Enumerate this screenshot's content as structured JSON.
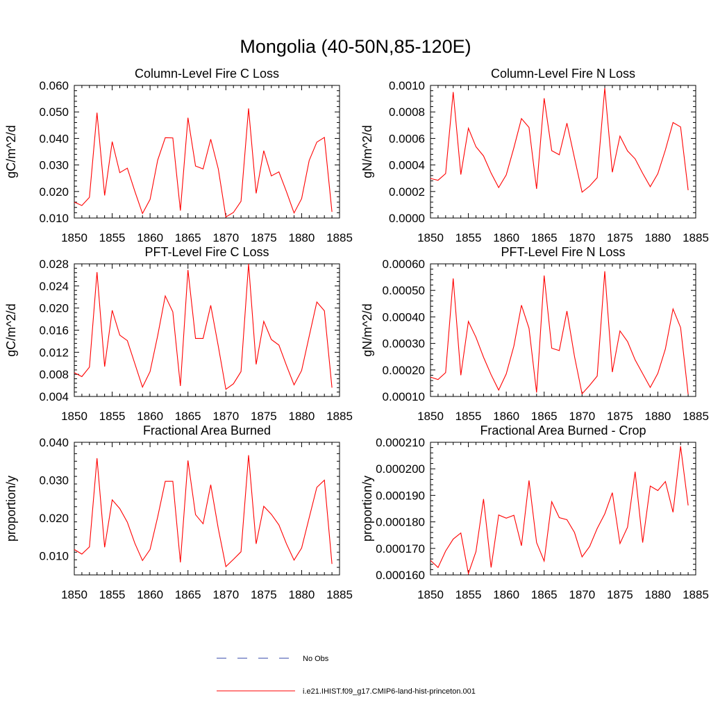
{
  "title": "Mongolia (40-50N,85-120E)",
  "legend": {
    "entries": [
      {
        "label": "No Obs",
        "style": "dashed",
        "color": "#3344aa"
      },
      {
        "label": "i.e21.IHIST.f09_g17.CMIP6-land-hist-princeton.001",
        "style": "solid",
        "color": "#ff0000"
      }
    ],
    "placement": "bottom-center"
  },
  "chart_data": [
    {
      "type": "line",
      "title": "Column-Level Fire C Loss",
      "ylabel": "gC/m^2/d",
      "xlim": [
        1850,
        1885
      ],
      "ylim": [
        0.01,
        0.06
      ],
      "xticks": [
        "1850",
        "1855",
        "1860",
        "1865",
        "1870",
        "1875",
        "1880",
        "1885"
      ],
      "yticks": [
        "0.010",
        "0.020",
        "0.030",
        "0.040",
        "0.050",
        "0.060"
      ],
      "x": [
        1850,
        1851,
        1852,
        1853,
        1854,
        1855,
        1856,
        1857,
        1858,
        1859,
        1860,
        1861,
        1862,
        1863,
        1864,
        1865,
        1866,
        1867,
        1868,
        1869,
        1870,
        1871,
        1872,
        1873,
        1874,
        1875,
        1876,
        1877,
        1878,
        1879,
        1880,
        1881,
        1882,
        1883,
        1884
      ],
      "series": [
        {
          "name": "i.e21.IHIST.f09_g17.CMIP6-land-hist-princeton.001",
          "color": "#ff0000",
          "values": [
            0.016,
            0.0147,
            0.0178,
            0.0497,
            0.0185,
            0.0388,
            0.0271,
            0.0288,
            0.02,
            0.0117,
            0.017,
            0.0318,
            0.0403,
            0.0402,
            0.0128,
            0.0478,
            0.0296,
            0.0285,
            0.0397,
            0.0285,
            0.0104,
            0.0121,
            0.0163,
            0.0513,
            0.0193,
            0.0354,
            0.0259,
            0.0274,
            0.0199,
            0.0119,
            0.0173,
            0.0317,
            0.0386,
            0.0404,
            0.0123
          ]
        }
      ]
    },
    {
      "type": "line",
      "title": "Column-Level Fire N Loss",
      "ylabel": "gN/m^2/d",
      "xlim": [
        1850,
        1885
      ],
      "ylim": [
        0.0,
        0.001
      ],
      "xticks": [
        "1850",
        "1855",
        "1860",
        "1865",
        "1870",
        "1875",
        "1880",
        "1885"
      ],
      "yticks": [
        "0.0000",
        "0.0002",
        "0.0004",
        "0.0006",
        "0.0008",
        "0.0010"
      ],
      "x": [
        1850,
        1851,
        1852,
        1853,
        1854,
        1855,
        1856,
        1857,
        1858,
        1859,
        1860,
        1861,
        1862,
        1863,
        1864,
        1865,
        1866,
        1867,
        1868,
        1869,
        1870,
        1871,
        1872,
        1873,
        1874,
        1875,
        1876,
        1877,
        1878,
        1879,
        1880,
        1881,
        1882,
        1883,
        1884
      ],
      "series": [
        {
          "name": "i.e21.IHIST.f09_g17.CMIP6-land-hist-princeton.001",
          "color": "#ff0000",
          "values": [
            0.000298,
            0.000285,
            0.000335,
            0.00095,
            0.000328,
            0.000677,
            0.000537,
            0.000468,
            0.000339,
            0.00023,
            0.000325,
            0.00053,
            0.00075,
            0.000683,
            0.00022,
            0.000903,
            0.000508,
            0.000477,
            0.000715,
            0.000453,
            0.000195,
            0.000241,
            0.000304,
            0.00098,
            0.000345,
            0.000618,
            0.000506,
            0.000446,
            0.000337,
            0.000236,
            0.000334,
            0.000513,
            0.00072,
            0.000687,
            0.00021
          ]
        }
      ]
    },
    {
      "type": "line",
      "title": "PFT-Level Fire C Loss",
      "ylabel": "gC/m^2/d",
      "xlim": [
        1850,
        1885
      ],
      "ylim": [
        0.004,
        0.028
      ],
      "xticks": [
        "1850",
        "1855",
        "1860",
        "1865",
        "1870",
        "1875",
        "1880",
        "1885"
      ],
      "yticks": [
        "0.004",
        "0.008",
        "0.012",
        "0.016",
        "0.020",
        "0.024",
        "0.028"
      ],
      "x": [
        1850,
        1851,
        1852,
        1853,
        1854,
        1855,
        1856,
        1857,
        1858,
        1859,
        1860,
        1861,
        1862,
        1863,
        1864,
        1865,
        1866,
        1867,
        1868,
        1869,
        1870,
        1871,
        1872,
        1873,
        1874,
        1875,
        1876,
        1877,
        1878,
        1879,
        1880,
        1881,
        1882,
        1883,
        1884
      ],
      "series": [
        {
          "name": "i.e21.IHIST.f09_g17.CMIP6-land-hist-princeton.001",
          "color": "#ff0000",
          "values": [
            0.0083,
            0.0076,
            0.0093,
            0.0265,
            0.0094,
            0.0196,
            0.0151,
            0.0141,
            0.0099,
            0.0057,
            0.0085,
            0.015,
            0.0222,
            0.0193,
            0.0059,
            0.0269,
            0.0145,
            0.0145,
            0.0205,
            0.0131,
            0.0053,
            0.0063,
            0.0085,
            0.028,
            0.0098,
            0.0176,
            0.0143,
            0.0133,
            0.0096,
            0.0061,
            0.0087,
            0.0149,
            0.0211,
            0.0195,
            0.0056
          ]
        }
      ]
    },
    {
      "type": "line",
      "title": "PFT-Level Fire N Loss",
      "ylabel": "gN/m^2/d",
      "xlim": [
        1850,
        1885
      ],
      "ylim": [
        0.0001,
        0.0006
      ],
      "xticks": [
        "1850",
        "1855",
        "1860",
        "1865",
        "1870",
        "1875",
        "1880",
        "1885"
      ],
      "yticks": [
        "0.00010",
        "0.00020",
        "0.00030",
        "0.00040",
        "0.00050",
        "0.00060"
      ],
      "x": [
        1850,
        1851,
        1852,
        1853,
        1854,
        1855,
        1856,
        1857,
        1858,
        1859,
        1860,
        1861,
        1862,
        1863,
        1864,
        1865,
        1866,
        1867,
        1868,
        1869,
        1870,
        1871,
        1872,
        1873,
        1874,
        1875,
        1876,
        1877,
        1878,
        1879,
        1880,
        1881,
        1882,
        1883,
        1884
      ],
      "series": [
        {
          "name": "i.e21.IHIST.f09_g17.CMIP6-land-hist-princeton.001",
          "color": "#ff0000",
          "values": [
            0.000173,
            0.000164,
            0.00019,
            0.000545,
            0.00018,
            0.000383,
            0.000323,
            0.000248,
            0.000182,
            0.000124,
            0.000185,
            0.00029,
            0.000444,
            0.000357,
            0.000115,
            0.000556,
            0.000282,
            0.000273,
            0.000422,
            0.000251,
            0.00011,
            0.000142,
            0.000177,
            0.000572,
            0.000192,
            0.000347,
            0.000307,
            0.000238,
            0.000186,
            0.000134,
            0.000187,
            0.000279,
            0.00043,
            0.00036,
            0.000108
          ]
        }
      ]
    },
    {
      "type": "line",
      "title": "Fractional Area Burned",
      "ylabel": "proportion/y",
      "xlim": [
        1850,
        1885
      ],
      "ylim": [
        0.005,
        0.04
      ],
      "xticks": [
        "1850",
        "1855",
        "1860",
        "1865",
        "1870",
        "1875",
        "1880",
        "1885"
      ],
      "yticks": [
        "0.010",
        "0.020",
        "0.030",
        "0.040"
      ],
      "ytick_values": [
        0.01,
        0.02,
        0.03,
        0.04
      ],
      "x": [
        1850,
        1851,
        1852,
        1853,
        1854,
        1855,
        1856,
        1857,
        1858,
        1859,
        1860,
        1861,
        1862,
        1863,
        1864,
        1865,
        1866,
        1867,
        1868,
        1869,
        1870,
        1871,
        1872,
        1873,
        1874,
        1875,
        1876,
        1877,
        1878,
        1879,
        1880,
        1881,
        1882,
        1883,
        1884
      ],
      "series": [
        {
          "name": "i.e21.IHIST.f09_g17.CMIP6-land-hist-princeton.001",
          "color": "#ff0000",
          "values": [
            0.0117,
            0.0105,
            0.0124,
            0.0358,
            0.0123,
            0.0248,
            0.0225,
            0.0189,
            0.0133,
            0.0088,
            0.0117,
            0.0203,
            0.0297,
            0.0297,
            0.0083,
            0.0352,
            0.0209,
            0.0185,
            0.0288,
            0.0172,
            0.0072,
            0.0091,
            0.0111,
            0.0366,
            0.0132,
            0.0231,
            0.021,
            0.0182,
            0.0132,
            0.0089,
            0.0121,
            0.0201,
            0.0281,
            0.03,
            0.0079
          ]
        }
      ]
    },
    {
      "type": "line",
      "title": "Fractional Area Burned - Crop",
      "ylabel": "proportion/y",
      "xlim": [
        1850,
        1885
      ],
      "ylim": [
        0.00016,
        0.00021
      ],
      "xticks": [
        "1850",
        "1855",
        "1860",
        "1865",
        "1870",
        "1875",
        "1880",
        "1885"
      ],
      "yticks": [
        "0.000160",
        "0.000170",
        "0.000180",
        "0.000190",
        "0.000200",
        "0.000210"
      ],
      "x": [
        1850,
        1851,
        1852,
        1853,
        1854,
        1855,
        1856,
        1857,
        1858,
        1859,
        1860,
        1861,
        1862,
        1863,
        1864,
        1865,
        1866,
        1867,
        1868,
        1869,
        1870,
        1871,
        1872,
        1873,
        1874,
        1875,
        1876,
        1877,
        1878,
        1879,
        1880,
        1881,
        1882,
        1883,
        1884
      ],
      "series": [
        {
          "name": "i.e21.IHIST.f09_g17.CMIP6-land-hist-princeton.001",
          "color": "#ff0000",
          "values": [
            0.0001655,
            0.0001628,
            0.000169,
            0.0001735,
            0.0001758,
            0.0001605,
            0.0001688,
            0.0001886,
            0.0001628,
            0.0001826,
            0.0001814,
            0.0001825,
            0.000171,
            0.0001956,
            0.0001722,
            0.0001652,
            0.0001876,
            0.0001816,
            0.0001808,
            0.000176,
            0.0001668,
            0.0001707,
            0.0001775,
            0.000183,
            0.000191,
            0.0001718,
            0.000178,
            0.0001989,
            0.0001722,
            0.0001935,
            0.0001918,
            0.0001952,
            0.0001836,
            0.0002085,
            0.0001862
          ]
        }
      ]
    }
  ]
}
